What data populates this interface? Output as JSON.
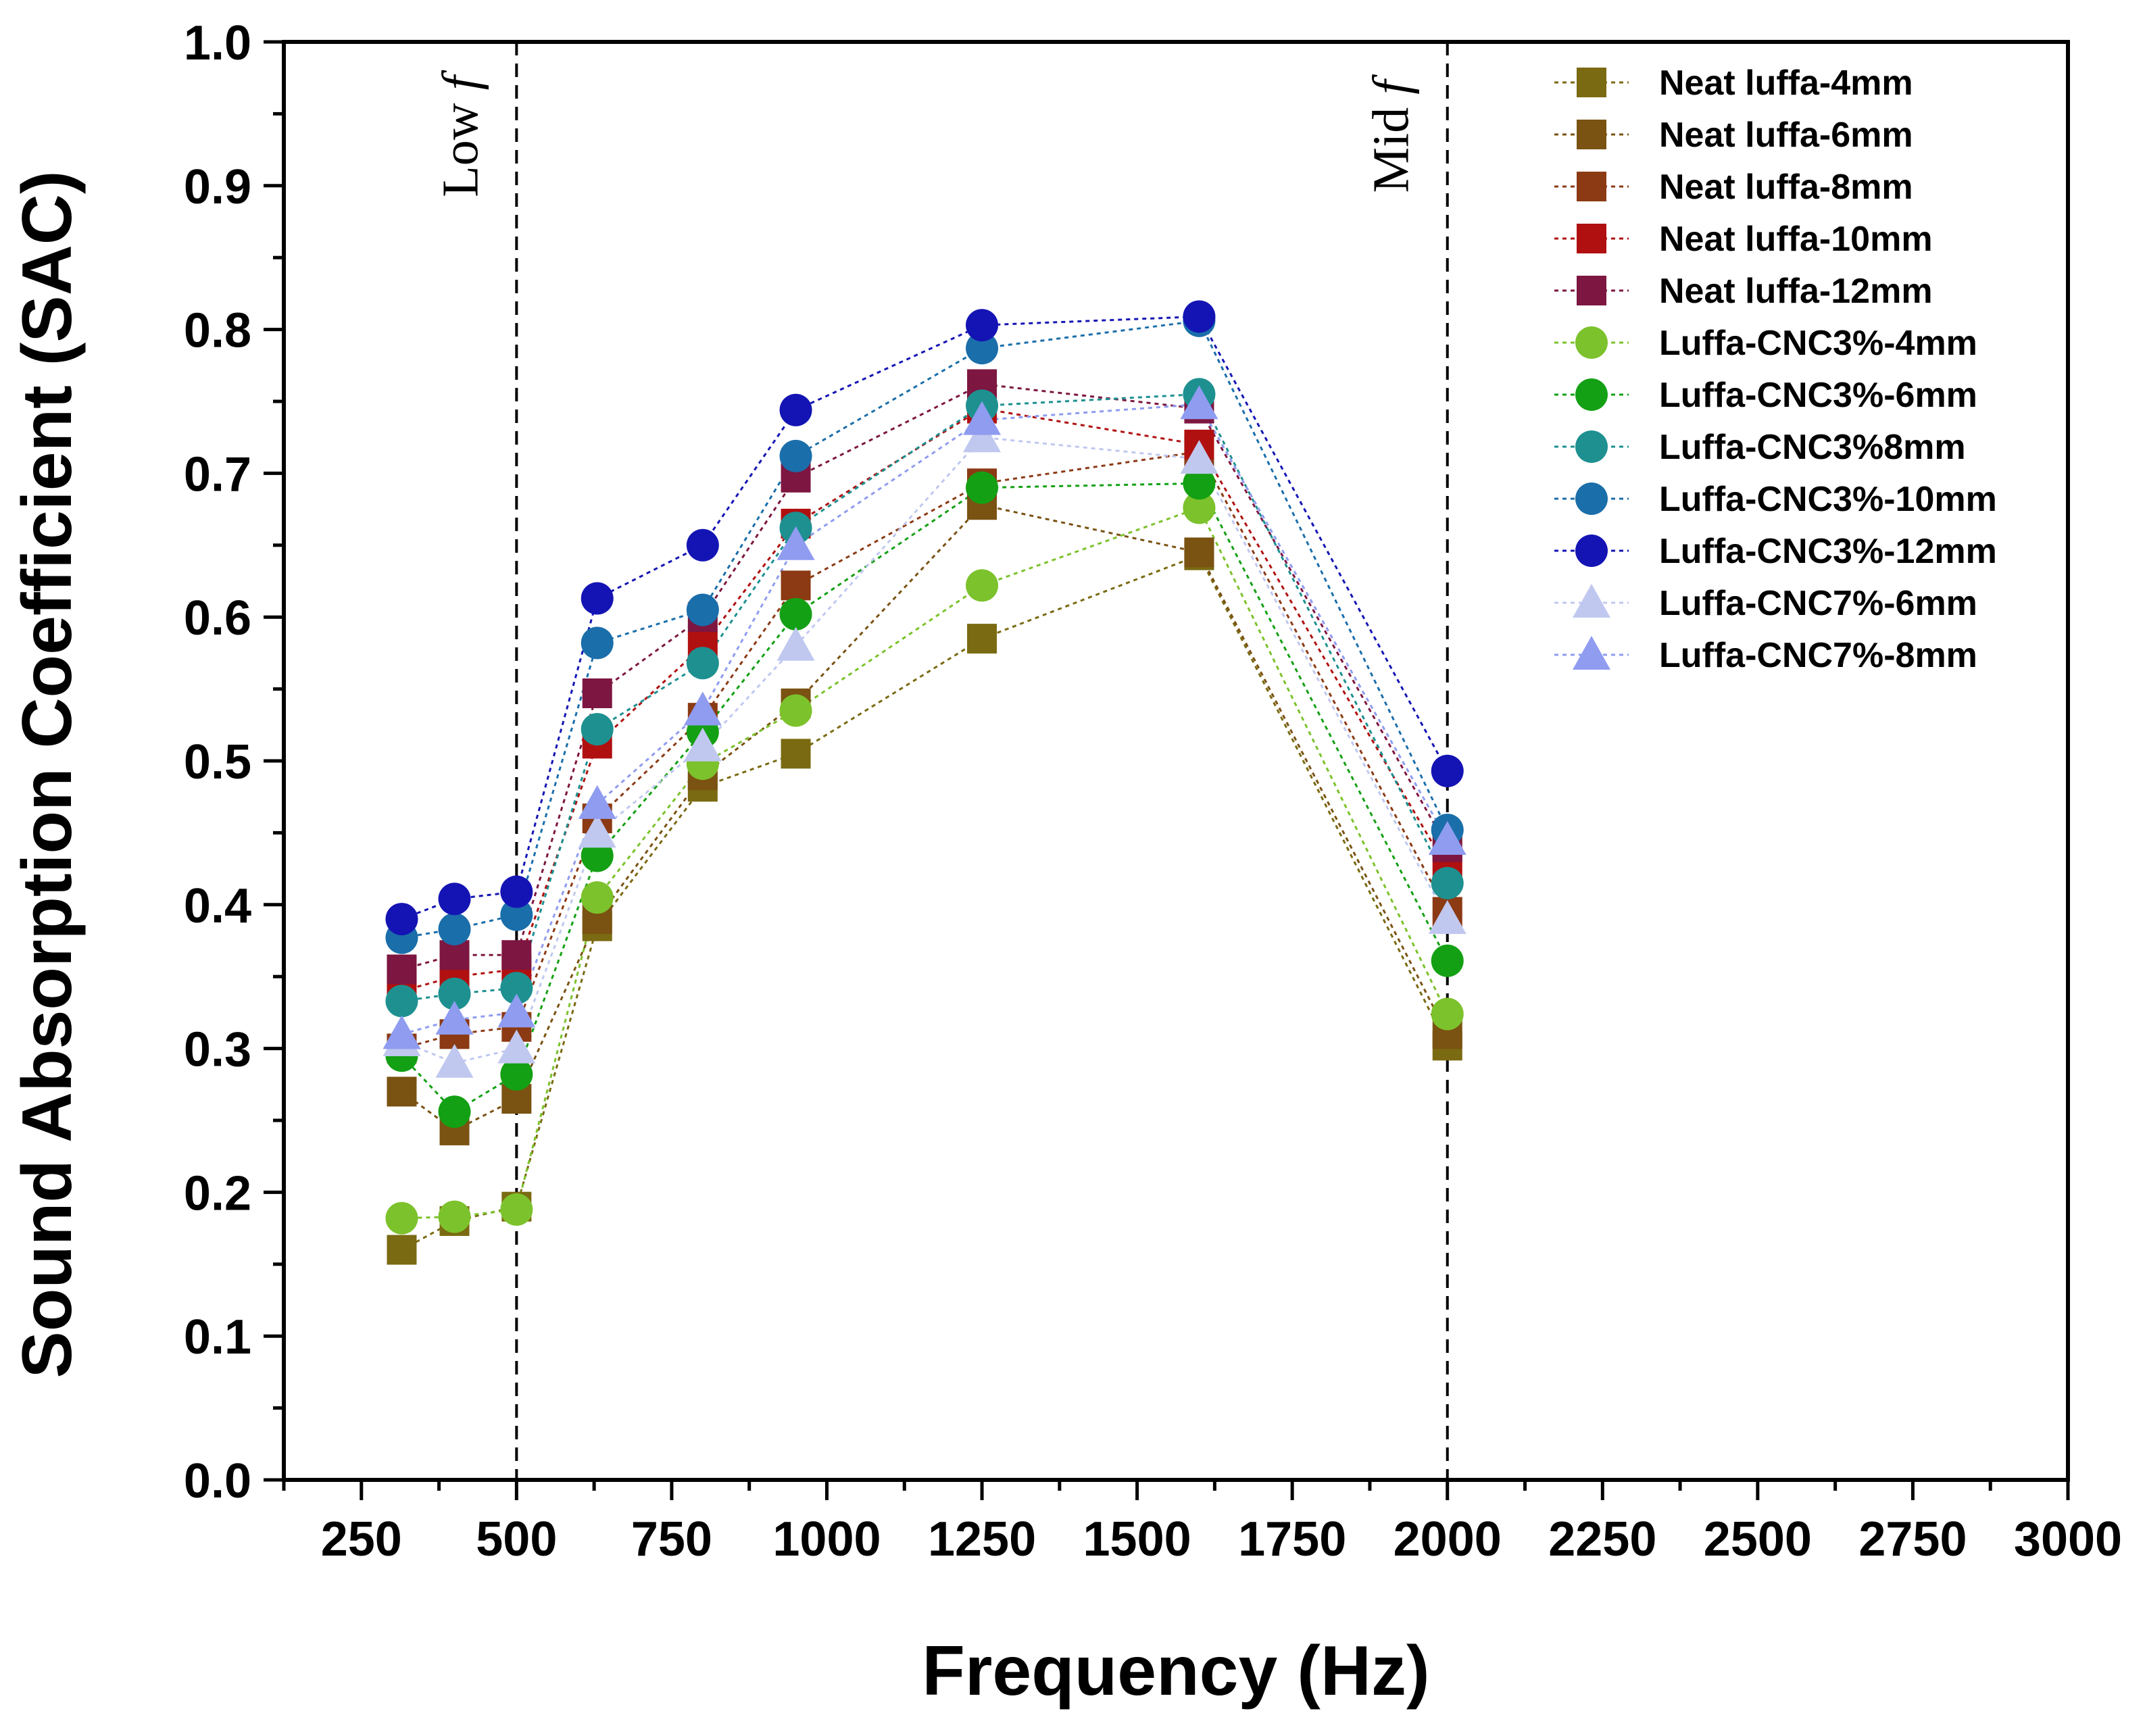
{
  "chart_data": {
    "type": "scatter",
    "xlabel": "Frequency (Hz)",
    "ylabel": "Sound Absorption Coefficient (SAC)",
    "xlim": [
      125,
      3000
    ],
    "ylim": [
      0.0,
      1.0
    ],
    "xticks": [
      "250",
      "500",
      "750",
      "1000",
      "1250",
      "1500",
      "1750",
      "2000",
      "2250",
      "2500",
      "2750",
      "3000"
    ],
    "yticks": [
      "0.0",
      "0.1",
      "0.2",
      "0.3",
      "0.4",
      "0.5",
      "0.6",
      "0.7",
      "0.8",
      "0.9",
      "1.0"
    ],
    "x": [
      315,
      400,
      500,
      630,
      800,
      950,
      1250,
      1600,
      2000
    ],
    "reference_lines": [
      {
        "x": 500,
        "label_main": "Low",
        "label_italic": "f"
      },
      {
        "x": 2000,
        "label_main": "Mid",
        "label_italic": "f"
      }
    ],
    "legend_position": "top-right",
    "series": [
      {
        "name": "Neat luffa-4mm",
        "marker": "square",
        "color": "#7a6a12",
        "values": [
          0.16,
          0.18,
          0.19,
          0.385,
          0.482,
          0.505,
          0.585,
          0.643,
          0.302
        ]
      },
      {
        "name": "Neat luffa-6mm",
        "marker": "square",
        "color": "#7a5212",
        "values": [
          0.27,
          0.243,
          0.265,
          0.39,
          0.49,
          0.54,
          0.678,
          0.645,
          0.31
        ]
      },
      {
        "name": "Neat luffa-8mm",
        "marker": "square",
        "color": "#8b3a14",
        "values": [
          0.3,
          0.31,
          0.315,
          0.46,
          0.53,
          0.622,
          0.693,
          0.715,
          0.395
        ]
      },
      {
        "name": "Neat luffa-10mm",
        "marker": "square",
        "color": "#b01010",
        "values": [
          0.34,
          0.35,
          0.355,
          0.512,
          0.58,
          0.665,
          0.745,
          0.72,
          0.425
        ]
      },
      {
        "name": "Neat luffa-12mm",
        "marker": "square",
        "color": "#7d1640",
        "values": [
          0.355,
          0.365,
          0.365,
          0.547,
          0.6,
          0.697,
          0.762,
          0.745,
          0.44
        ]
      },
      {
        "name": "Luffa-CNC3%-4mm",
        "marker": "circle",
        "color": "#7cc22c",
        "values": [
          0.182,
          0.183,
          0.188,
          0.405,
          0.498,
          0.535,
          0.622,
          0.676,
          0.324
        ]
      },
      {
        "name": "Luffa-CNC3%-6mm",
        "marker": "circle",
        "color": "#14a014",
        "values": [
          0.295,
          0.256,
          0.282,
          0.434,
          0.52,
          0.602,
          0.69,
          0.693,
          0.361
        ]
      },
      {
        "name": "Luffa-CNC3%8mm",
        "marker": "circle",
        "color": "#1e9090",
        "values": [
          0.333,
          0.338,
          0.342,
          0.522,
          0.568,
          0.662,
          0.747,
          0.755,
          0.415
        ]
      },
      {
        "name": "Luffa-CNC3%-10mm",
        "marker": "circle",
        "color": "#1a6eaa",
        "values": [
          0.377,
          0.383,
          0.393,
          0.582,
          0.605,
          0.712,
          0.787,
          0.806,
          0.452
        ]
      },
      {
        "name": "Luffa-CNC3%-12mm",
        "marker": "circle",
        "color": "#1414b4",
        "values": [
          0.39,
          0.404,
          0.409,
          0.613,
          0.65,
          0.744,
          0.803,
          0.809,
          0.493
        ]
      },
      {
        "name": "Luffa-CNC7%-6mm",
        "marker": "triangle",
        "color": "#c0c8f0",
        "values": [
          0.305,
          0.29,
          0.3,
          0.45,
          0.51,
          0.58,
          0.725,
          0.71,
          0.39
        ]
      },
      {
        "name": "Luffa-CNC7%-8mm",
        "marker": "triangle",
        "color": "#8f9cf0",
        "values": [
          0.31,
          0.32,
          0.325,
          0.47,
          0.535,
          0.65,
          0.737,
          0.748,
          0.445
        ]
      }
    ]
  }
}
